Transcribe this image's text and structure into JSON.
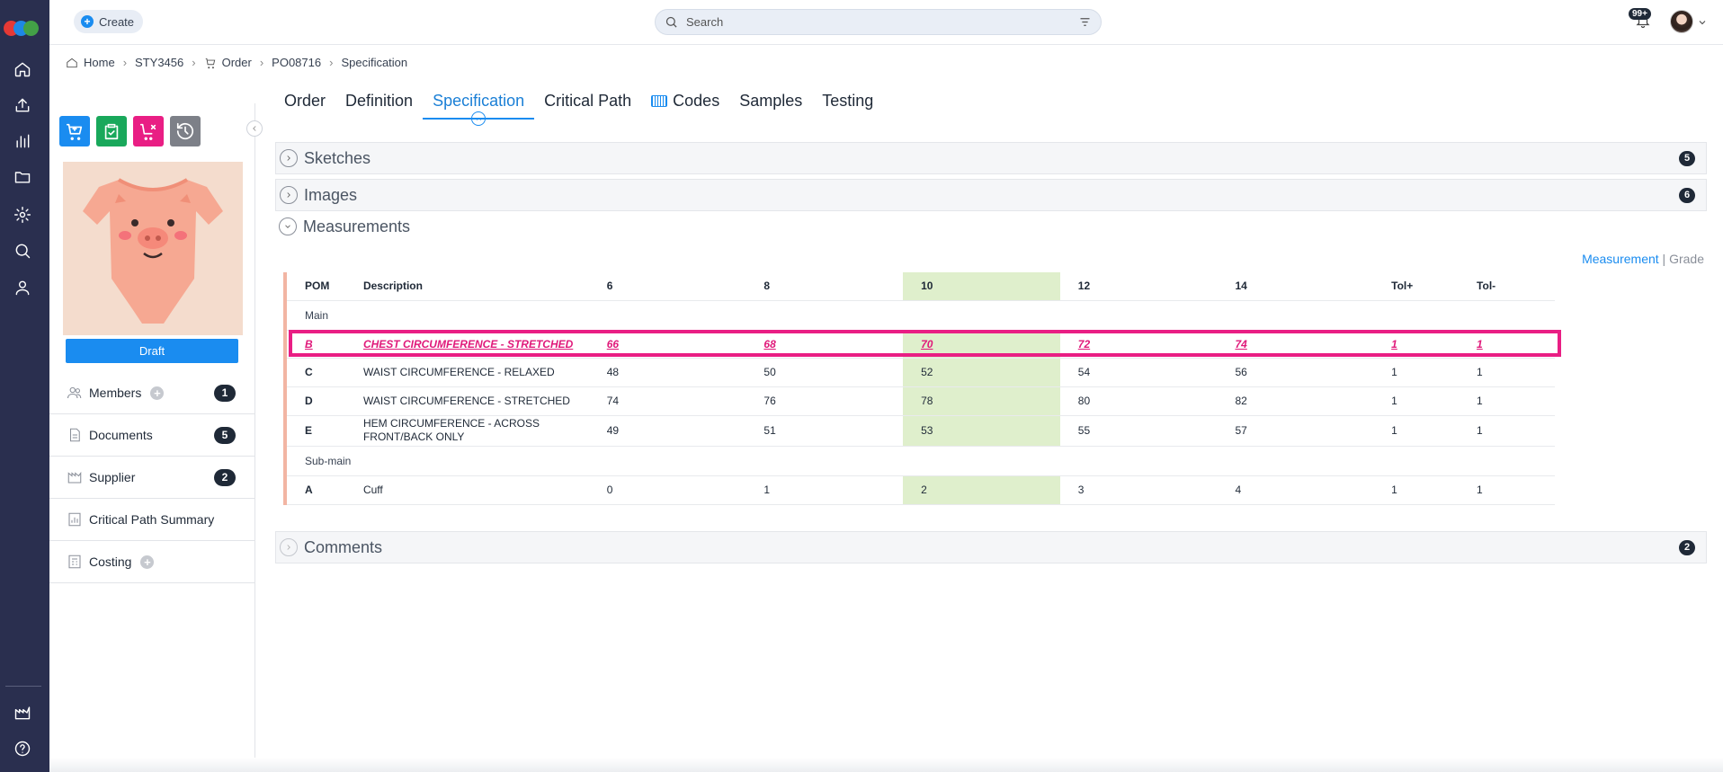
{
  "topbar": {
    "create_label": "Create",
    "search_placeholder": "Search",
    "notification_badge": "99+"
  },
  "rail": {
    "icons": [
      "home-icon",
      "upload-icon",
      "bar-chart-icon",
      "folder-icon",
      "gear-icon",
      "search-icon",
      "user-icon",
      "factory-icon",
      "help-icon"
    ],
    "logo_colors": [
      "#e53935",
      "#1e88e5",
      "#43a047"
    ]
  },
  "breadcrumb": {
    "items": [
      "Home",
      "STY3456",
      "Order",
      "PO08716",
      "Specification"
    ]
  },
  "left_panel": {
    "action_buttons": [
      {
        "icon": "cart-icon",
        "color": "#1a8cf0"
      },
      {
        "icon": "clipboard-icon",
        "color": "#19a85b"
      },
      {
        "icon": "cart-remove-icon",
        "color": "#e91e84"
      },
      {
        "icon": "history-icon",
        "color": "#7d8088"
      }
    ],
    "status_label": "Draft",
    "items": [
      {
        "label": "Members",
        "count": "1",
        "icon": "members-icon",
        "add": true
      },
      {
        "label": "Documents",
        "count": "5",
        "icon": "document-icon",
        "add": false
      },
      {
        "label": "Supplier",
        "count": "2",
        "icon": "factory-icon",
        "add": false
      },
      {
        "label": "Critical Path Summary",
        "count": "",
        "icon": "chart-doc-icon",
        "add": false
      },
      {
        "label": "Costing",
        "count": "",
        "icon": "costing-icon",
        "add": true
      }
    ]
  },
  "tabs": [
    "Order",
    "Definition",
    "Specification",
    "Critical Path",
    "Codes",
    "Samples",
    "Testing"
  ],
  "active_tab": "Specification",
  "sections": {
    "sketches": {
      "title": "Sketches",
      "count": "5"
    },
    "images": {
      "title": "Images",
      "count": "6"
    },
    "measurements": {
      "title": "Measurements"
    },
    "comments": {
      "title": "Comments",
      "count": "2"
    }
  },
  "measurement_links": {
    "measurement": "Measurement",
    "separator": "|",
    "grade": "Grade"
  },
  "table": {
    "headers": [
      "POM",
      "Description",
      "6",
      "8",
      "10",
      "12",
      "14",
      "Tol+",
      "Tol-"
    ],
    "highlight_column": "10",
    "groups": [
      {
        "name": "Main",
        "rows": [
          {
            "pom": "B",
            "desc": "CHEST CIRCUMFERENCE - STRETCHED",
            "v": [
              "66",
              "68",
              "70",
              "72",
              "74"
            ],
            "tol_plus": "1",
            "tol_minus": "1",
            "selected": true
          },
          {
            "pom": "C",
            "desc": "WAIST CIRCUMFERENCE - RELAXED",
            "v": [
              "48",
              "50",
              "52",
              "54",
              "56"
            ],
            "tol_plus": "1",
            "tol_minus": "1"
          },
          {
            "pom": "D",
            "desc": "WAIST CIRCUMFERENCE - STRETCHED",
            "v": [
              "74",
              "76",
              "78",
              "80",
              "82"
            ],
            "tol_plus": "1",
            "tol_minus": "1"
          },
          {
            "pom": "E",
            "desc": "HEM CIRCUMFERENCE - ACROSS FRONT/BACK ONLY",
            "v": [
              "49",
              "51",
              "53",
              "55",
              "57"
            ],
            "tol_plus": "1",
            "tol_minus": "1"
          }
        ]
      },
      {
        "name": "Sub-main",
        "rows": [
          {
            "pom": "A",
            "desc": "Cuff",
            "v": [
              "0",
              "1",
              "2",
              "3",
              "4"
            ],
            "tol_plus": "1",
            "tol_minus": "1"
          }
        ]
      }
    ]
  }
}
